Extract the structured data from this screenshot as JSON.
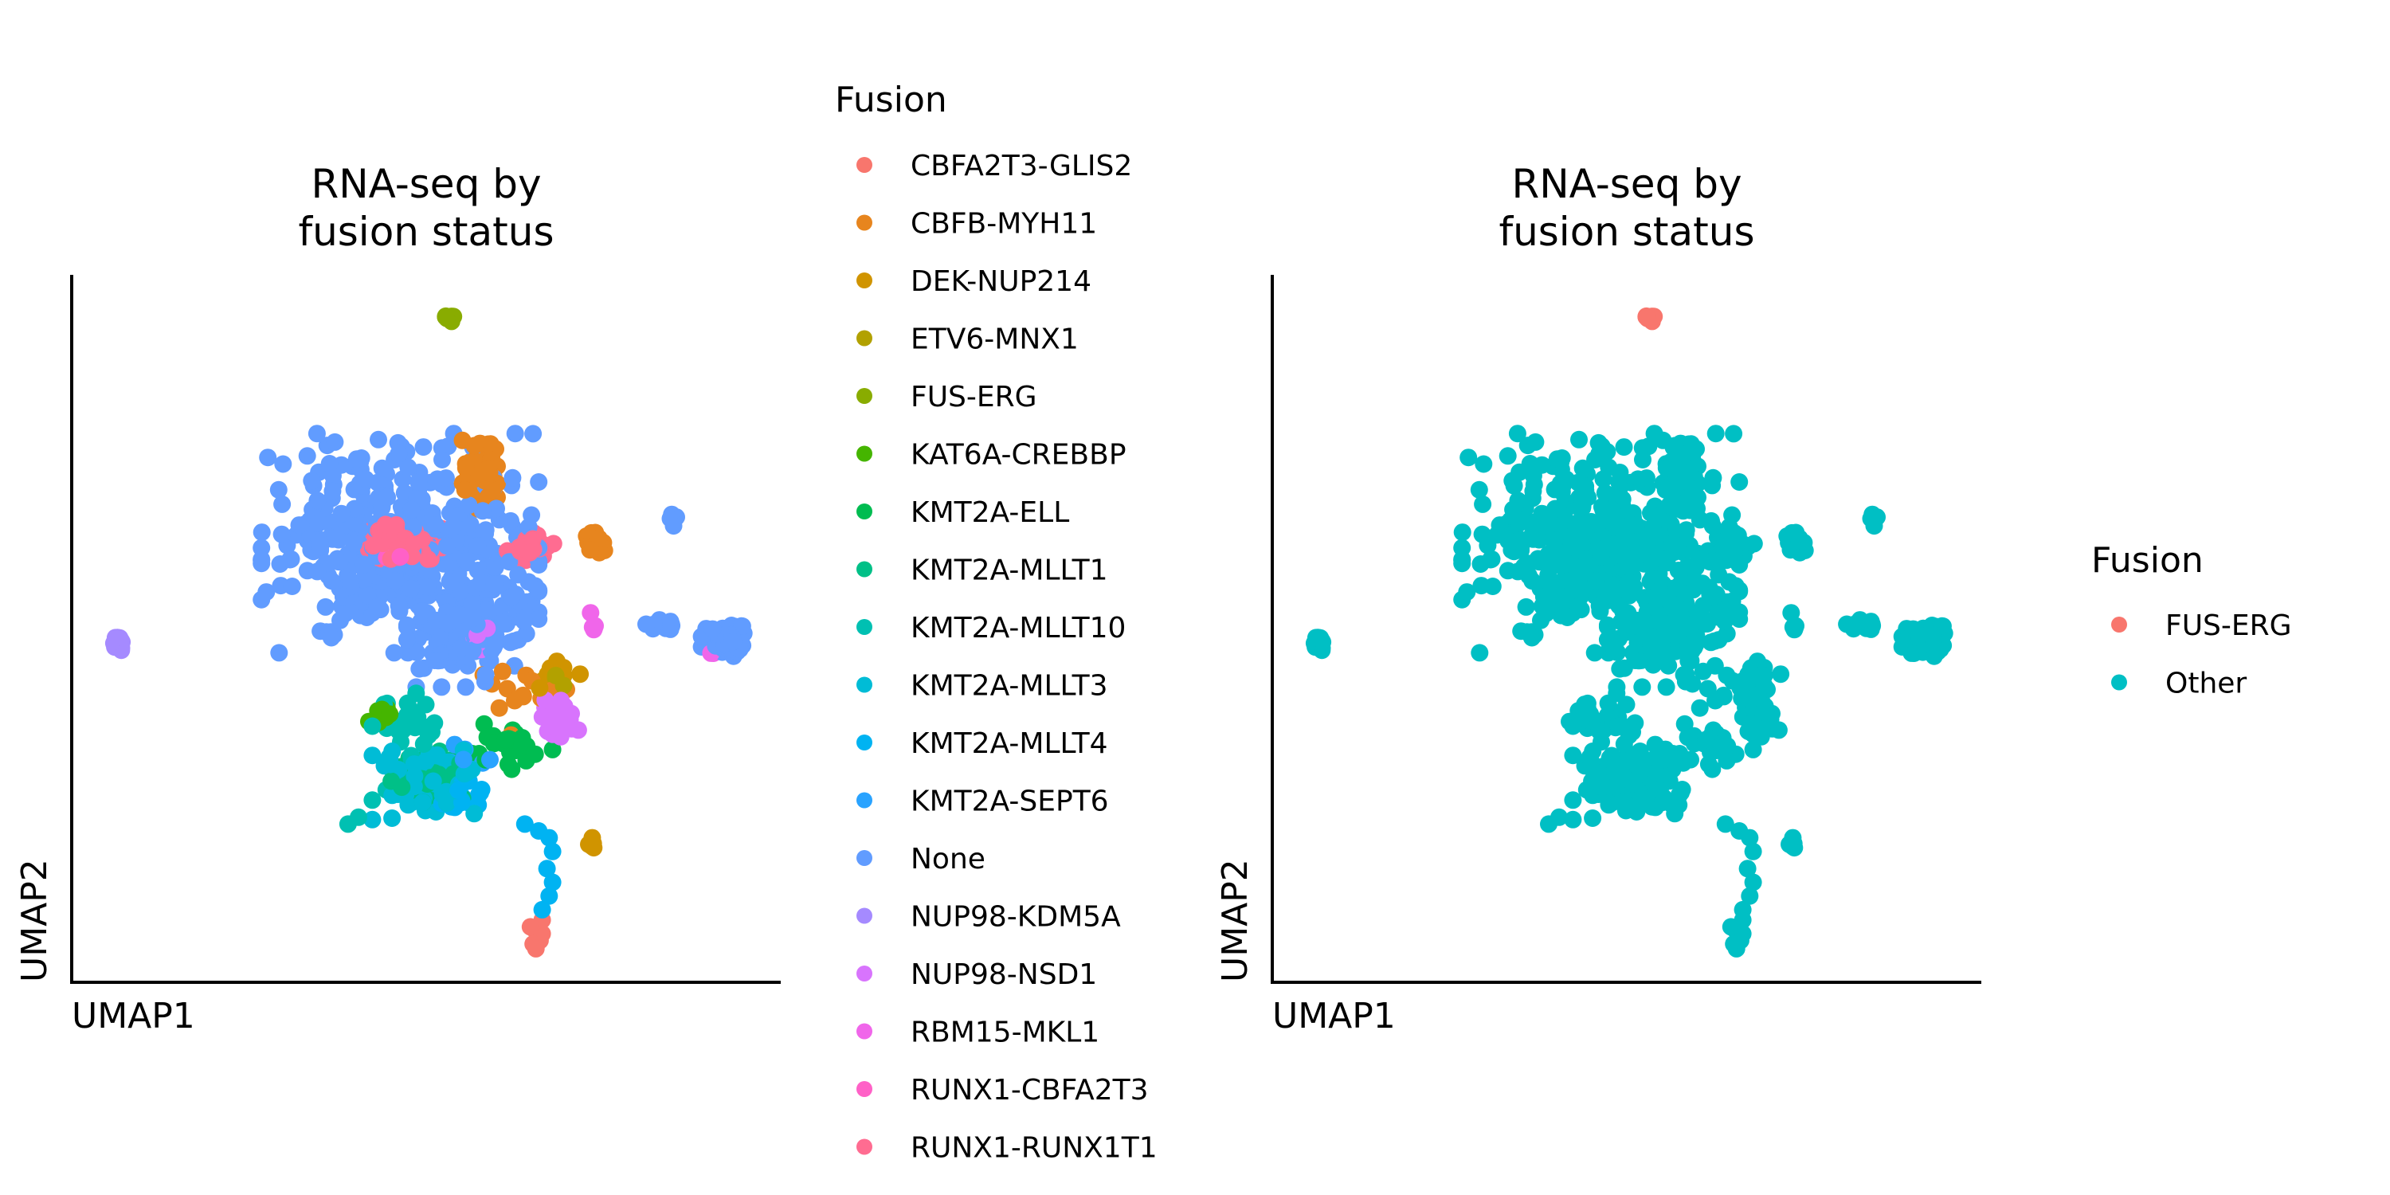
{
  "chart_data": [
    {
      "type": "scatter",
      "title": "RNA-seq by\nfusion status",
      "xlabel": "UMAP1",
      "ylabel": "UMAP2",
      "ticks": "none",
      "grid": false,
      "legend": {
        "title": "Fusion",
        "placement": "right",
        "entries": [
          {
            "name": "CBFA2T3-GLIS2",
            "color": "#F8766D"
          },
          {
            "name": "CBFB-MYH11",
            "color": "#E7851E"
          },
          {
            "name": "DEK-NUP214",
            "color": "#D09400"
          },
          {
            "name": "ETV6-MNX1",
            "color": "#B2A100"
          },
          {
            "name": "FUS-ERG",
            "color": "#89AC00"
          },
          {
            "name": "KAT6A-CREBBP",
            "color": "#45B500"
          },
          {
            "name": "KMT2A-ELL",
            "color": "#00BC51"
          },
          {
            "name": "KMT2A-MLLT1",
            "color": "#00C087"
          },
          {
            "name": "KMT2A-MLLT10",
            "color": "#00C0B2"
          },
          {
            "name": "KMT2A-MLLT3",
            "color": "#00BCD6"
          },
          {
            "name": "KMT2A-MLLT4",
            "color": "#00B3F2"
          },
          {
            "name": "KMT2A-SEPT6",
            "color": "#29A3FF"
          },
          {
            "name": "None",
            "color": "#619CFF"
          },
          {
            "name": "NUP98-KDM5A",
            "color": "#A58AFF"
          },
          {
            "name": "NUP98-NSD1",
            "color": "#D874FD"
          },
          {
            "name": "RBM15-MKL1",
            "color": "#F066EA"
          },
          {
            "name": "RUNX1-CBFA2T3",
            "color": "#FF61C7"
          },
          {
            "name": "RUNX1-RUNX1T1",
            "color": "#FF6C91"
          }
        ]
      },
      "clusters": [
        {
          "category": "None",
          "cx": 0.46,
          "cy": 0.62,
          "rx": 0.2,
          "ry": 0.16,
          "n": 380
        },
        {
          "category": "None",
          "cx": 0.56,
          "cy": 0.5,
          "rx": 0.09,
          "ry": 0.09,
          "n": 160
        },
        {
          "category": "None",
          "cx": 0.93,
          "cy": 0.48,
          "rx": 0.035,
          "ry": 0.025,
          "n": 55
        },
        {
          "category": "None",
          "cx": 0.84,
          "cy": 0.5,
          "rx": 0.025,
          "ry": 0.008,
          "n": 18
        },
        {
          "category": "None",
          "cx": 0.36,
          "cy": 0.49,
          "rx": 0.015,
          "ry": 0.008,
          "n": 8
        },
        {
          "category": "None",
          "cx": 0.855,
          "cy": 0.655,
          "rx": 0.01,
          "ry": 0.01,
          "n": 5
        },
        {
          "category": "None",
          "cx": 0.585,
          "cy": 0.725,
          "rx": 0.01,
          "ry": 0.02,
          "n": 8
        },
        {
          "category": "RUNX1-RUNX1T1",
          "cx": 0.46,
          "cy": 0.62,
          "rx": 0.06,
          "ry": 0.035,
          "n": 130
        },
        {
          "category": "RUNX1-RUNX1T1",
          "cx": 0.65,
          "cy": 0.615,
          "rx": 0.035,
          "ry": 0.02,
          "n": 45
        },
        {
          "category": "RUNX1-CBFA2T3",
          "cx": 0.48,
          "cy": 0.6,
          "rx": 0.04,
          "ry": 0.03,
          "n": 12
        },
        {
          "category": "CBFB-MYH11",
          "cx": 0.575,
          "cy": 0.72,
          "rx": 0.025,
          "ry": 0.05,
          "n": 75
        },
        {
          "category": "CBFB-MYH11",
          "cx": 0.74,
          "cy": 0.62,
          "rx": 0.015,
          "ry": 0.025,
          "n": 25
        },
        {
          "category": "CBFB-MYH11",
          "cx": 0.64,
          "cy": 0.4,
          "rx": 0.06,
          "ry": 0.06,
          "n": 14
        },
        {
          "category": "DEK-NUP214",
          "cx": 0.69,
          "cy": 0.43,
          "rx": 0.03,
          "ry": 0.03,
          "n": 10
        },
        {
          "category": "DEK-NUP214",
          "cx": 0.735,
          "cy": 0.18,
          "rx": 0.007,
          "ry": 0.01,
          "n": 5
        },
        {
          "category": "FUS-ERG",
          "cx": 0.53,
          "cy": 0.95,
          "rx": 0.007,
          "ry": 0.007,
          "n": 8
        },
        {
          "category": "ETV6-MNX1",
          "cx": 0.69,
          "cy": 0.42,
          "rx": 0.02,
          "ry": 0.02,
          "n": 4
        },
        {
          "category": "KAT6A-CREBBP",
          "cx": 0.43,
          "cy": 0.37,
          "rx": 0.015,
          "ry": 0.015,
          "n": 8
        },
        {
          "category": "KMT2A-MLLT3",
          "cx": 0.5,
          "cy": 0.27,
          "rx": 0.08,
          "ry": 0.06,
          "n": 70
        },
        {
          "category": "KMT2A-MLLT1",
          "cx": 0.5,
          "cy": 0.28,
          "rx": 0.06,
          "ry": 0.045,
          "n": 40
        },
        {
          "category": "KMT2A-MLLT10",
          "cx": 0.47,
          "cy": 0.35,
          "rx": 0.05,
          "ry": 0.06,
          "n": 30
        },
        {
          "category": "KMT2A-ELL",
          "cx": 0.62,
          "cy": 0.33,
          "rx": 0.06,
          "ry": 0.04,
          "n": 25
        },
        {
          "category": "KMT2A-MLLT4",
          "cx": 0.55,
          "cy": 0.25,
          "rx": 0.04,
          "ry": 0.03,
          "n": 15
        },
        {
          "category": "KMT2A-SEPT6",
          "cx": 0.55,
          "cy": 0.3,
          "rx": 0.04,
          "ry": 0.04,
          "n": 10
        },
        {
          "category": "NUP98-KDM5A",
          "cx": 0.055,
          "cy": 0.475,
          "rx": 0.01,
          "ry": 0.018,
          "n": 14
        },
        {
          "category": "NUP98-NSD1",
          "cx": 0.69,
          "cy": 0.37,
          "rx": 0.03,
          "ry": 0.035,
          "n": 45
        },
        {
          "category": "NUP98-NSD1",
          "cx": 0.58,
          "cy": 0.49,
          "rx": 0.03,
          "ry": 0.03,
          "n": 10
        },
        {
          "category": "RBM15-MKL1",
          "cx": 0.91,
          "cy": 0.46,
          "rx": 0.005,
          "ry": 0.005,
          "n": 2
        },
        {
          "category": "RBM15-MKL1",
          "cx": 0.74,
          "cy": 0.5,
          "rx": 0.01,
          "ry": 0.02,
          "n": 5
        }
      ],
      "tail": [
        {
          "category": "KMT2A-MLLT4",
          "points": [
            [
              0.64,
              0.21
            ],
            [
              0.66,
              0.2
            ],
            [
              0.675,
              0.19
            ],
            [
              0.68,
              0.17
            ],
            [
              0.672,
              0.145
            ],
            [
              0.68,
              0.125
            ],
            [
              0.675,
              0.105
            ],
            [
              0.665,
              0.085
            ]
          ]
        },
        {
          "category": "CBFA2T3-GLIS2",
          "points": [
            [
              0.665,
              0.07
            ],
            [
              0.655,
              0.055
            ],
            [
              0.66,
              0.045
            ],
            [
              0.652,
              0.035
            ],
            [
              0.665,
              0.05
            ],
            [
              0.648,
              0.06
            ],
            [
              0.662,
              0.04
            ],
            [
              0.656,
              0.028
            ]
          ]
        },
        {
          "category": "KMT2A-MLLT10",
          "points": [
            [
              0.4,
              0.22
            ],
            [
              0.385,
              0.21
            ],
            [
              0.42,
              0.245
            ],
            [
              0.44,
              0.26
            ]
          ]
        }
      ]
    },
    {
      "type": "scatter",
      "title": "RNA-seq by\nfusion status",
      "xlabel": "UMAP1",
      "ylabel": "UMAP2",
      "ticks": "none",
      "grid": false,
      "legend": {
        "title": "Fusion",
        "placement": "right",
        "entries": [
          {
            "name": "FUS-ERG",
            "color": "#F8766D"
          },
          {
            "name": "Other",
            "color": "#00BFC4"
          }
        ]
      },
      "highlight": "FUS-ERG",
      "other_label": "Other"
    }
  ]
}
